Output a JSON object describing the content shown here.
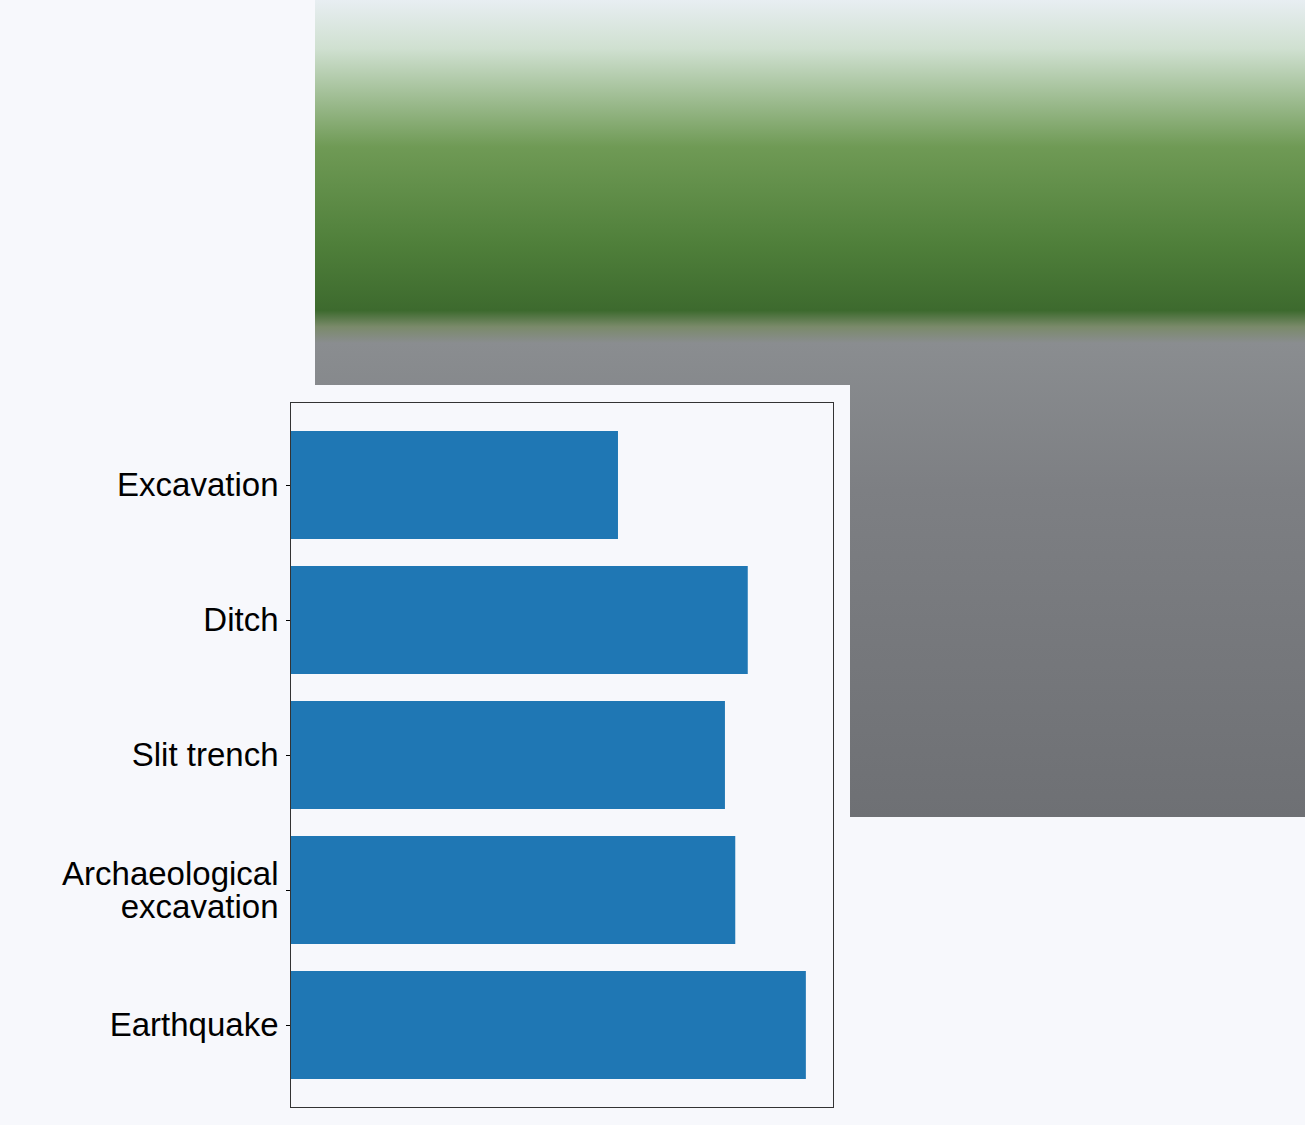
{
  "chart_data": {
    "type": "bar",
    "orientation": "horizontal",
    "categories": [
      "Excavation",
      "Ditch",
      "Slit trench",
      "Archaeological excavation",
      "Earthquake"
    ],
    "values": [
      0.604,
      0.843,
      0.801,
      0.82,
      0.95
    ],
    "color": "#1f77b4",
    "xlim": [
      0,
      1
    ],
    "grid": false,
    "tick_labels": "y"
  }
}
